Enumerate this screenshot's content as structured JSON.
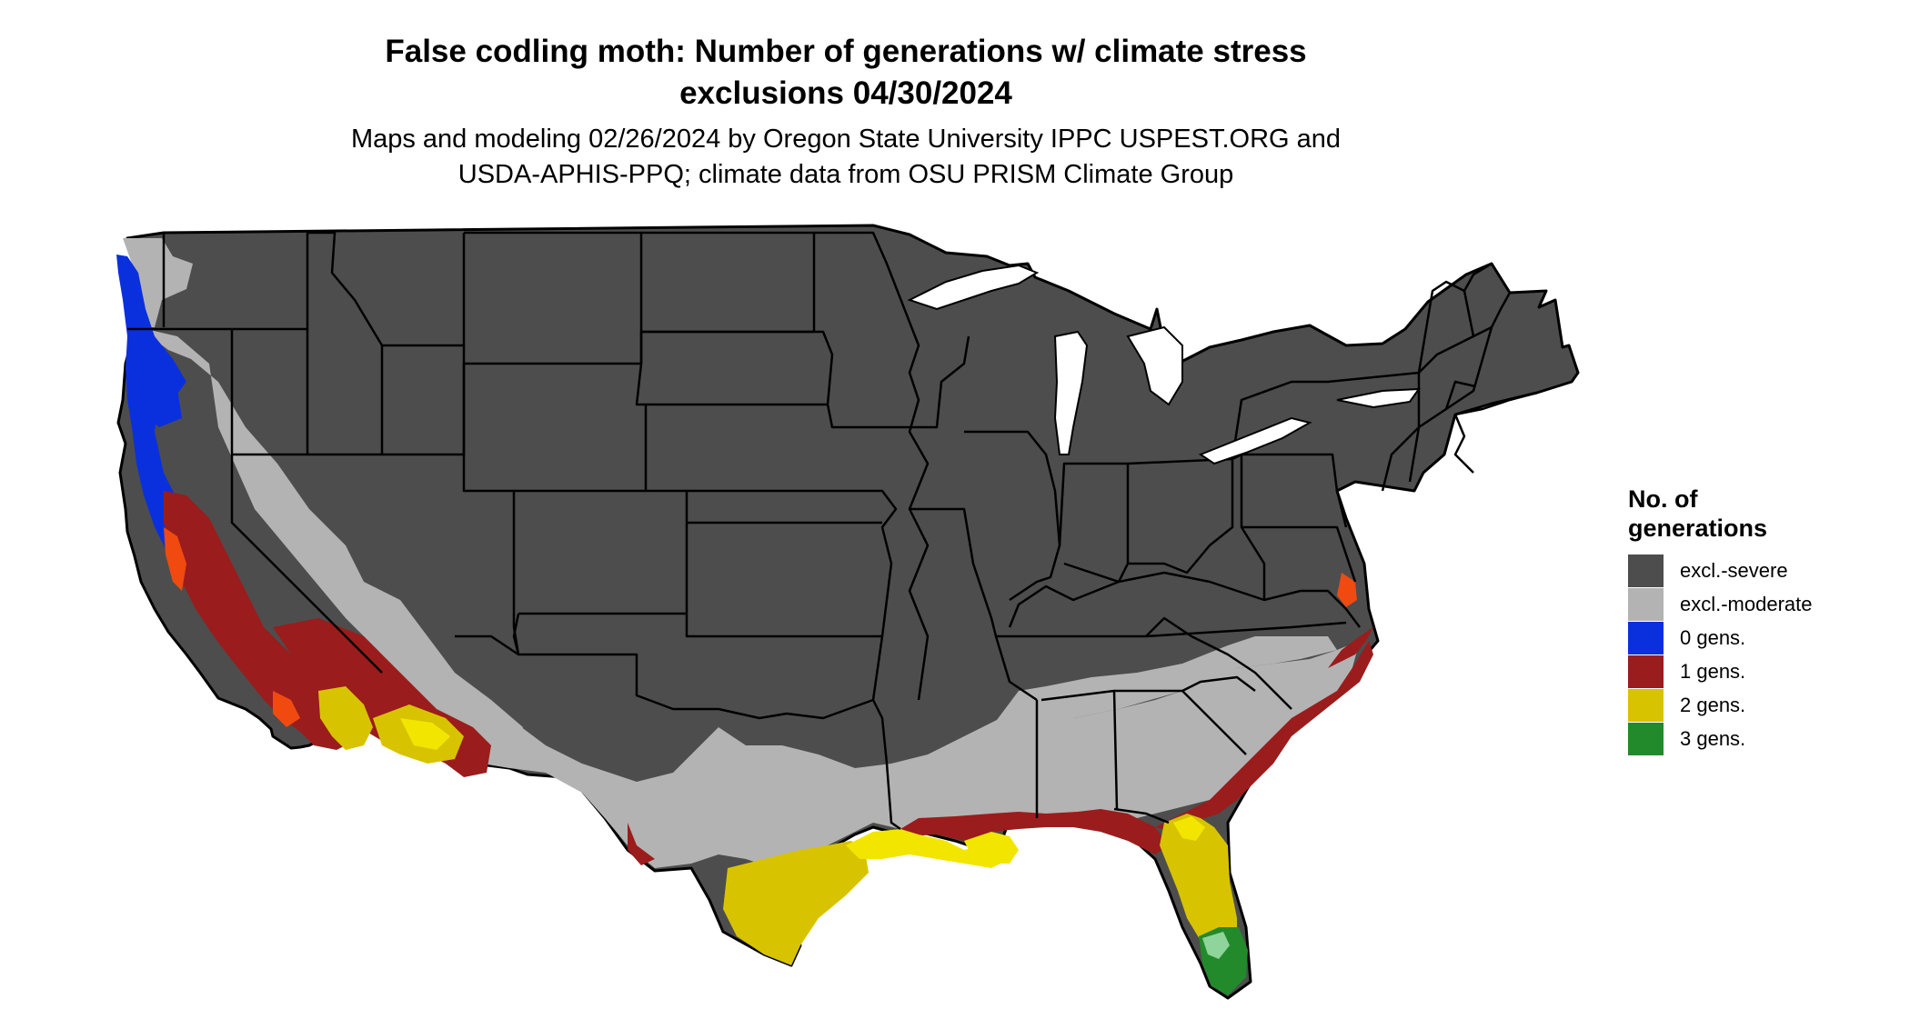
{
  "title": {
    "line1": "False codling moth: Number of generations w/ climate stress",
    "line2": "exclusions 04/30/2024"
  },
  "subtitle": {
    "line1": "Maps and modeling 02/26/2024 by Oregon State University IPPC USPEST.ORG and",
    "line2": "USDA-APHIS-PPQ; climate data from OSU PRISM Climate Group"
  },
  "legend": {
    "title_line1": "No. of",
    "title_line2": "generations",
    "items": [
      {
        "label": "excl.-severe",
        "color": "#4d4d4d"
      },
      {
        "label": "excl.-moderate",
        "color": "#b3b3b3"
      },
      {
        "label": "0 gens.",
        "color": "#0a30de"
      },
      {
        "label": "1 gens.",
        "color": "#9b1c1c"
      },
      {
        "label": "2 gens.",
        "color": "#d8c300"
      },
      {
        "label": "3 gens.",
        "color": "#238a2b"
      }
    ]
  },
  "map": {
    "region": "contiguous United States",
    "colors": {
      "severe": "#4d4d4d",
      "moderate": "#b3b3b3",
      "gen0": "#0a30de",
      "gen1": "#9b1c1c",
      "gen2": "#d8c300",
      "gen2_bright": "#f2e600",
      "gen3": "#238a2b",
      "gen3_light": "#8fd49a",
      "hot_orange": "#f04a10",
      "border": "#000000"
    }
  }
}
